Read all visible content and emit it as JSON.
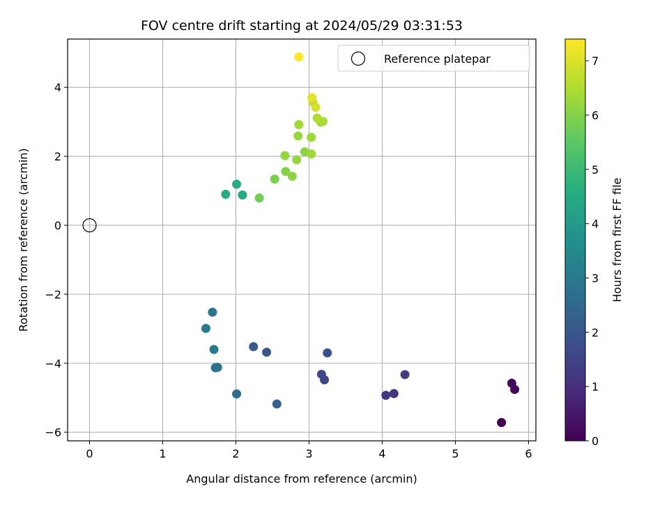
{
  "chart_data": {
    "type": "scatter",
    "title": "FOV centre drift starting at 2024/05/29 03:31:53",
    "xlabel": "Angular distance from reference (arcmin)",
    "ylabel": "Rotation from reference (arcmin)",
    "xlim": [
      -0.3,
      6.1
    ],
    "ylim": [
      -6.25,
      5.4
    ],
    "xticks": [
      0,
      1,
      2,
      3,
      4,
      5,
      6
    ],
    "yticks": [
      -6,
      -4,
      -2,
      0,
      2,
      4
    ],
    "grid": true,
    "legend": {
      "placement": "top-right",
      "entries": [
        "Reference platepar"
      ]
    },
    "reference_point": {
      "x": 0,
      "y": 0,
      "label": "Reference platepar"
    },
    "colorbar": {
      "label": "Hours from first FF file",
      "range": [
        0,
        7.4
      ],
      "ticks": [
        0,
        1,
        2,
        3,
        4,
        5,
        6,
        7
      ],
      "colormap": "viridis"
    },
    "points": [
      {
        "x": 5.63,
        "y": -5.72,
        "c": 0.0
      },
      {
        "x": 5.77,
        "y": -4.58,
        "c": 0.15
      },
      {
        "x": 5.81,
        "y": -4.76,
        "c": 0.1
      },
      {
        "x": 4.31,
        "y": -4.33,
        "c": 1.3
      },
      {
        "x": 4.16,
        "y": -4.88,
        "c": 1.1
      },
      {
        "x": 4.05,
        "y": -4.93,
        "c": 1.2
      },
      {
        "x": 3.25,
        "y": -3.7,
        "c": 1.8
      },
      {
        "x": 3.17,
        "y": -4.32,
        "c": 1.6
      },
      {
        "x": 3.21,
        "y": -4.48,
        "c": 1.6
      },
      {
        "x": 2.56,
        "y": -5.18,
        "c": 2.3
      },
      {
        "x": 2.42,
        "y": -3.68,
        "c": 2.0
      },
      {
        "x": 2.24,
        "y": -3.52,
        "c": 2.1
      },
      {
        "x": 2.01,
        "y": -4.89,
        "c": 2.6
      },
      {
        "x": 1.75,
        "y": -4.12,
        "c": 2.9
      },
      {
        "x": 1.72,
        "y": -4.13,
        "c": 2.8
      },
      {
        "x": 1.7,
        "y": -3.6,
        "c": 3.0
      },
      {
        "x": 1.59,
        "y": -2.99,
        "c": 3.0
      },
      {
        "x": 1.68,
        "y": -2.52,
        "c": 2.9
      },
      {
        "x": 1.86,
        "y": 0.9,
        "c": 4.6
      },
      {
        "x": 2.01,
        "y": 1.19,
        "c": 4.5
      },
      {
        "x": 2.09,
        "y": 0.88,
        "c": 4.5
      },
      {
        "x": 2.32,
        "y": 0.79,
        "c": 5.8
      },
      {
        "x": 2.53,
        "y": 1.34,
        "c": 5.9
      },
      {
        "x": 2.68,
        "y": 1.56,
        "c": 6.0
      },
      {
        "x": 2.77,
        "y": 1.42,
        "c": 6.1
      },
      {
        "x": 2.67,
        "y": 2.02,
        "c": 6.2
      },
      {
        "x": 2.83,
        "y": 1.9,
        "c": 6.2
      },
      {
        "x": 2.94,
        "y": 2.13,
        "c": 6.1
      },
      {
        "x": 3.03,
        "y": 2.07,
        "c": 6.3
      },
      {
        "x": 2.85,
        "y": 2.59,
        "c": 6.2
      },
      {
        "x": 3.03,
        "y": 2.55,
        "c": 6.3
      },
      {
        "x": 2.86,
        "y": 2.92,
        "c": 6.3
      },
      {
        "x": 3.16,
        "y": 2.99,
        "c": 6.3
      },
      {
        "x": 3.19,
        "y": 3.01,
        "c": 6.4
      },
      {
        "x": 3.11,
        "y": 3.11,
        "c": 6.5
      },
      {
        "x": 3.05,
        "y": 3.58,
        "c": 6.7
      },
      {
        "x": 3.09,
        "y": 3.42,
        "c": 6.9
      },
      {
        "x": 3.04,
        "y": 3.7,
        "c": 7.1
      },
      {
        "x": 2.86,
        "y": 4.88,
        "c": 7.4
      }
    ]
  }
}
